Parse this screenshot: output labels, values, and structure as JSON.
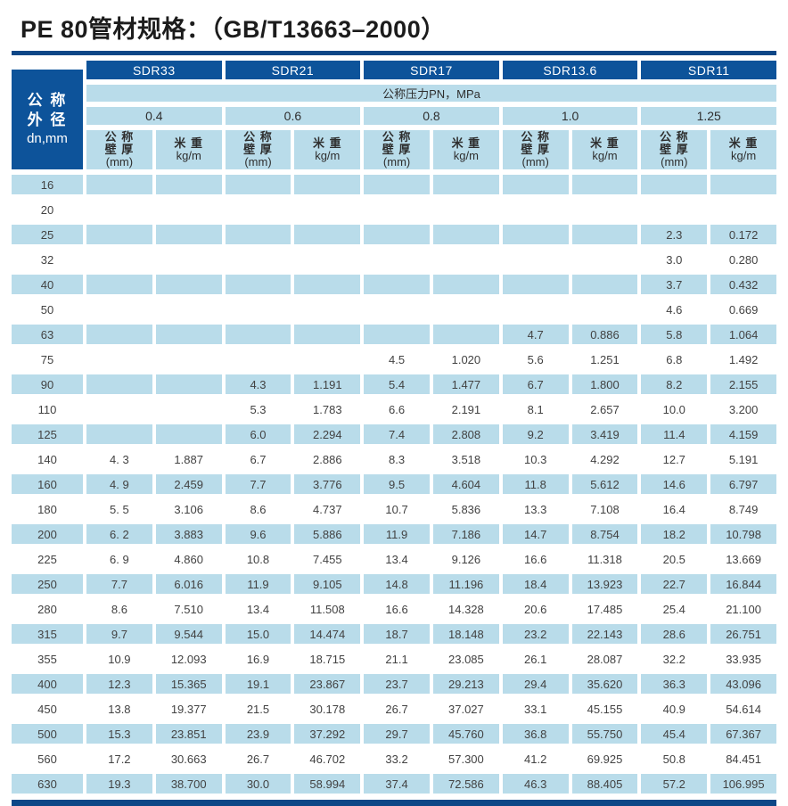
{
  "title": "PE 80管材规格：（GB/T13663–2000）",
  "colors": {
    "header_dark_blue": "#0d539a",
    "rule_navy": "#0d4787",
    "row_light_blue": "#b9dcea",
    "text_dark": "#424242"
  },
  "table": {
    "corner": {
      "line1": "公 称",
      "line2": "外 径",
      "line3": "dn,mm"
    },
    "sdr_groups": [
      "SDR33",
      "SDR21",
      "SDR17",
      "SDR13.6",
      "SDR11"
    ],
    "pressure_header": "公称压力PN，MPa",
    "pressure_values": [
      "0.4",
      "0.6",
      "0.8",
      "1.0",
      "1.25"
    ],
    "wall_header_lines": [
      "公 称",
      "壁 厚",
      "(mm)"
    ],
    "weight_header_lines": [
      "米 重",
      "kg/m"
    ],
    "rows": [
      [
        "16",
        "",
        "",
        "",
        "",
        "",
        "",
        "",
        "",
        "",
        ""
      ],
      [
        "20",
        "",
        "",
        "",
        "",
        "",
        "",
        "",
        "",
        "",
        ""
      ],
      [
        "25",
        "",
        "",
        "",
        "",
        "",
        "",
        "",
        "",
        "2.3",
        "0.172"
      ],
      [
        "32",
        "",
        "",
        "",
        "",
        "",
        "",
        "",
        "",
        "3.0",
        "0.280"
      ],
      [
        "40",
        "",
        "",
        "",
        "",
        "",
        "",
        "",
        "",
        "3.7",
        "0.432"
      ],
      [
        "50",
        "",
        "",
        "",
        "",
        "",
        "",
        "",
        "",
        "4.6",
        "0.669"
      ],
      [
        "63",
        "",
        "",
        "",
        "",
        "",
        "",
        "4.7",
        "0.886",
        "5.8",
        "1.064"
      ],
      [
        "75",
        "",
        "",
        "",
        "",
        "4.5",
        "1.020",
        "5.6",
        "1.251",
        "6.8",
        "1.492"
      ],
      [
        "90",
        "",
        "",
        "4.3",
        "1.191",
        "5.4",
        "1.477",
        "6.7",
        "1.800",
        "8.2",
        "2.155"
      ],
      [
        "110",
        "",
        "",
        "5.3",
        "1.783",
        "6.6",
        "2.191",
        "8.1",
        "2.657",
        "10.0",
        "3.200"
      ],
      [
        "125",
        "",
        "",
        "6.0",
        "2.294",
        "7.4",
        "2.808",
        "9.2",
        "3.419",
        "11.4",
        "4.159"
      ],
      [
        "140",
        "4. 3",
        "1.887",
        "6.7",
        "2.886",
        "8.3",
        "3.518",
        "10.3",
        "4.292",
        "12.7",
        "5.191"
      ],
      [
        "160",
        "4. 9",
        "2.459",
        "7.7",
        "3.776",
        "9.5",
        "4.604",
        "11.8",
        "5.612",
        "14.6",
        "6.797"
      ],
      [
        "180",
        "5. 5",
        "3.106",
        "8.6",
        "4.737",
        "10.7",
        "5.836",
        "13.3",
        "7.108",
        "16.4",
        "8.749"
      ],
      [
        "200",
        "6. 2",
        "3.883",
        "9.6",
        "5.886",
        "11.9",
        "7.186",
        "14.7",
        "8.754",
        "18.2",
        "10.798"
      ],
      [
        "225",
        "6. 9",
        "4.860",
        "10.8",
        "7.455",
        "13.4",
        "9.126",
        "16.6",
        "11.318",
        "20.5",
        "13.669"
      ],
      [
        "250",
        "7.7",
        "6.016",
        "11.9",
        "9.105",
        "14.8",
        "11.196",
        "18.4",
        "13.923",
        "22.7",
        "16.844"
      ],
      [
        "280",
        "8.6",
        "7.510",
        "13.4",
        "11.508",
        "16.6",
        "14.328",
        "20.6",
        "17.485",
        "25.4",
        "21.100"
      ],
      [
        "315",
        "9.7",
        "9.544",
        "15.0",
        "14.474",
        "18.7",
        "18.148",
        "23.2",
        "22.143",
        "28.6",
        "26.751"
      ],
      [
        "355",
        "10.9",
        "12.093",
        "16.9",
        "18.715",
        "21.1",
        "23.085",
        "26.1",
        "28.087",
        "32.2",
        "33.935"
      ],
      [
        "400",
        "12.3",
        "15.365",
        "19.1",
        "23.867",
        "23.7",
        "29.213",
        "29.4",
        "35.620",
        "36.3",
        "43.096"
      ],
      [
        "450",
        "13.8",
        "19.377",
        "21.5",
        "30.178",
        "26.7",
        "37.027",
        "33.1",
        "45.155",
        "40.9",
        "54.614"
      ],
      [
        "500",
        "15.3",
        "23.851",
        "23.9",
        "37.292",
        "29.7",
        "45.760",
        "36.8",
        "55.750",
        "45.4",
        "67.367"
      ],
      [
        "560",
        "17.2",
        "30.663",
        "26.7",
        "46.702",
        "33.2",
        "57.300",
        "41.2",
        "69.925",
        "50.8",
        "84.451"
      ],
      [
        "630",
        "19.3",
        "38.700",
        "30.0",
        "58.994",
        "37.4",
        "72.586",
        "46.3",
        "88.405",
        "57.2",
        "106.995"
      ]
    ]
  }
}
